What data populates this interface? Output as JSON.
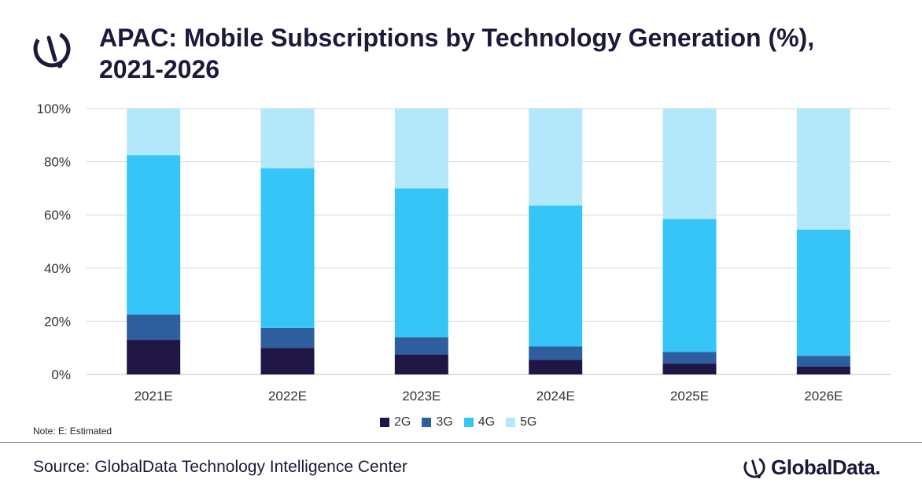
{
  "header": {
    "title_line1": "APAC: Mobile Subscriptions by Technology Generation (%),",
    "title_line2": "2021-2026",
    "logo_icon": "globaldata-mark-icon"
  },
  "chart_data": {
    "type": "bar",
    "stacked": true,
    "categories": [
      "2021E",
      "2022E",
      "2023E",
      "2024E",
      "2025E",
      "2026E"
    ],
    "series": [
      {
        "name": "2G",
        "color": "#1f1645",
        "values": [
          13,
          10,
          7.5,
          5.5,
          4,
          3
        ]
      },
      {
        "name": "3G",
        "color": "#2f5e9e",
        "values": [
          9.5,
          7.5,
          6.5,
          5,
          4.5,
          4
        ]
      },
      {
        "name": "4G",
        "color": "#36c5f7",
        "values": [
          60,
          60,
          56,
          53,
          50,
          47.5
        ]
      },
      {
        "name": "5G",
        "color": "#b3e7fa",
        "values": [
          17.5,
          22.5,
          30,
          36.5,
          41.5,
          45.5
        ]
      }
    ],
    "y_ticks": [
      "0%",
      "20%",
      "40%",
      "60%",
      "80%",
      "100%"
    ],
    "ylim": [
      0,
      100
    ],
    "grid": true,
    "legend_position": "bottom"
  },
  "footer": {
    "note": "Note: E: Estimated",
    "source": "Source: GlobalData Technology Intelligence Center",
    "brand": "GlobalData."
  }
}
